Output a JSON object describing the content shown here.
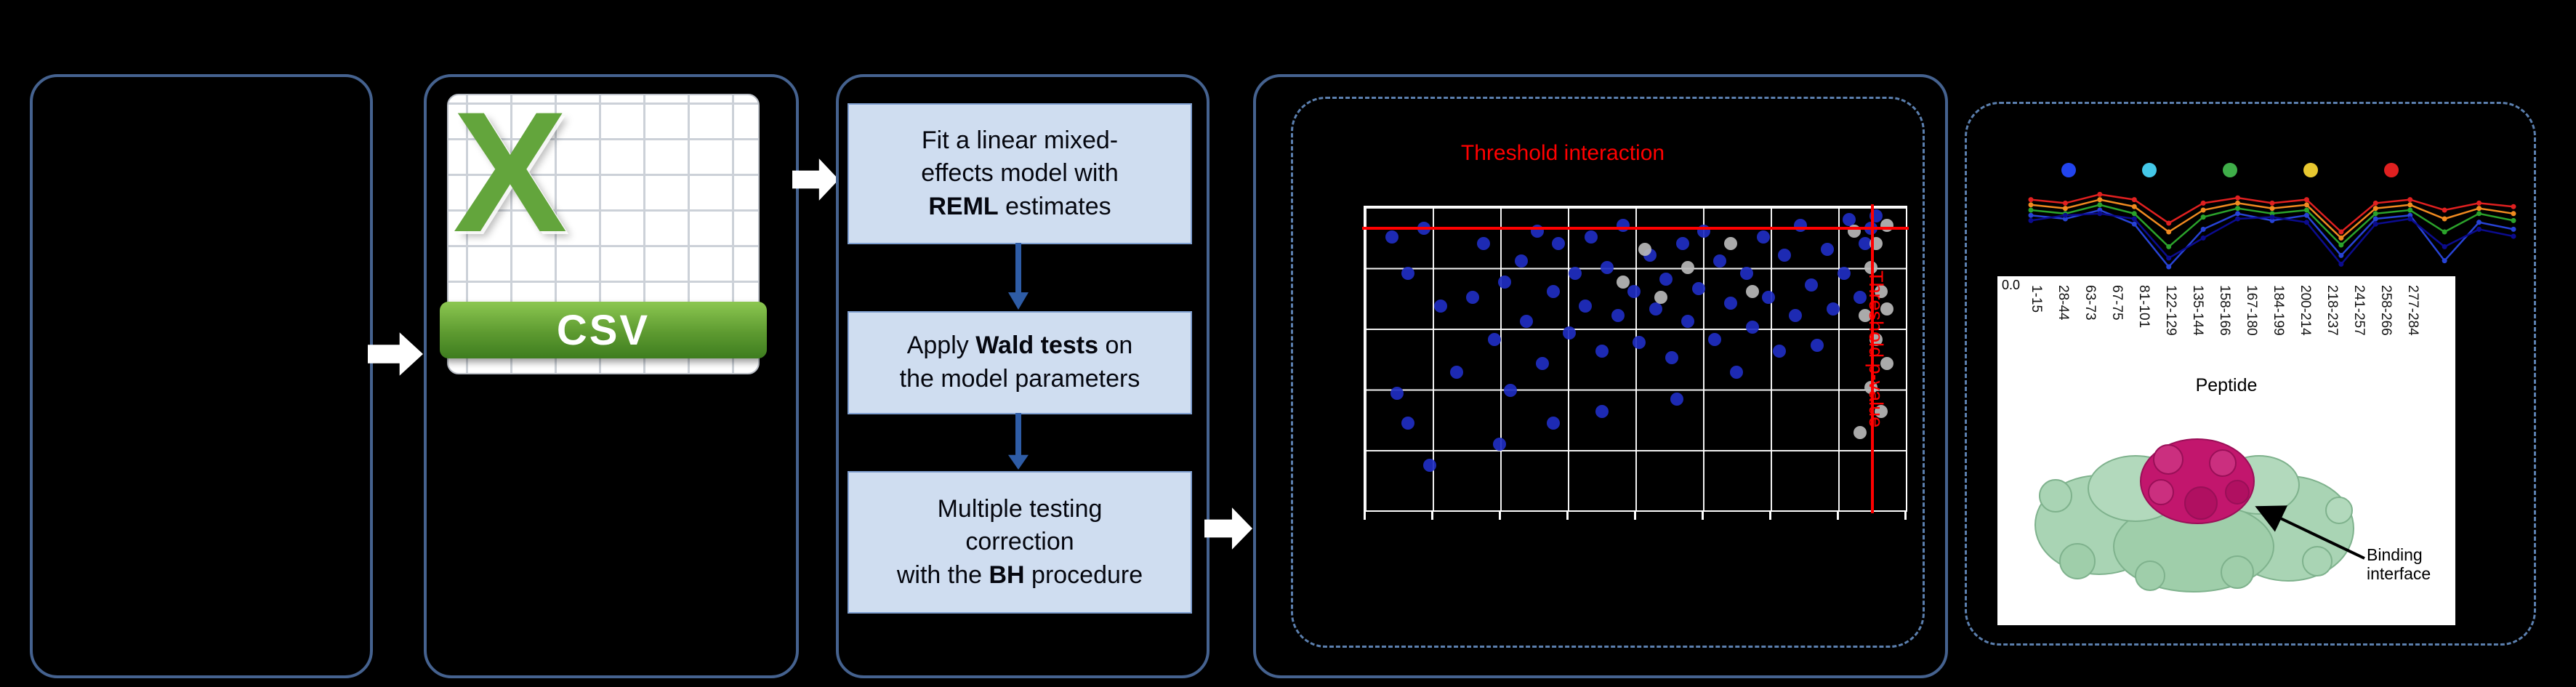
{
  "canvas": {
    "bg": "#000000"
  },
  "colors": {
    "box_border": "#45628f",
    "dashed_border": "#5b7fae",
    "step_fill": "#cfddf0",
    "threshold_red": "#ff0000",
    "significant_blue": "#1f2ec2",
    "nonsignificant_gray": "#b8b8b8"
  },
  "flow": {
    "csv_icon": {
      "letter": "X",
      "label": "CSV"
    },
    "steps": {
      "step1": {
        "l1": "Fit a linear mixed-",
        "l2": "effects model with",
        "l3_bold": "REML",
        "l3_rest": " estimates"
      },
      "step2": {
        "l1_pre": "Apply ",
        "l1_bold": "Wald tests",
        "l1_post": " on",
        "l2": "the model parameters"
      },
      "step3": {
        "l1": "Multiple testing",
        "l2": "correction",
        "l3_pre": "with the ",
        "l3_bold": "BH",
        "l3_post": " procedure"
      }
    }
  },
  "scatter_panel": {
    "title": "Threshold interaction",
    "side_label": "Threshold p-value",
    "chart_data": {
      "type": "scatter",
      "grid": {
        "cols": 8,
        "rows": 5
      },
      "threshold_interaction_y": 0.065,
      "threshold_pvalue_x": 0.941,
      "series": [
        {
          "name": "significant",
          "color": "#1f2ec2",
          "points": [
            [
              0.05,
              0.1
            ],
            [
              0.08,
              0.22
            ],
            [
              0.11,
              0.07
            ],
            [
              0.14,
              0.33
            ],
            [
              0.06,
              0.62
            ],
            [
              0.08,
              0.72
            ],
            [
              0.12,
              0.86
            ],
            [
              0.17,
              0.55
            ],
            [
              0.2,
              0.3
            ],
            [
              0.22,
              0.12
            ],
            [
              0.24,
              0.44
            ],
            [
              0.26,
              0.25
            ],
            [
              0.27,
              0.61
            ],
            [
              0.29,
              0.18
            ],
            [
              0.3,
              0.38
            ],
            [
              0.32,
              0.08
            ],
            [
              0.33,
              0.52
            ],
            [
              0.35,
              0.28
            ],
            [
              0.36,
              0.12
            ],
            [
              0.38,
              0.42
            ],
            [
              0.39,
              0.22
            ],
            [
              0.41,
              0.33
            ],
            [
              0.42,
              0.1
            ],
            [
              0.44,
              0.48
            ],
            [
              0.45,
              0.2
            ],
            [
              0.47,
              0.36
            ],
            [
              0.48,
              0.06
            ],
            [
              0.5,
              0.28
            ],
            [
              0.51,
              0.45
            ],
            [
              0.53,
              0.16
            ],
            [
              0.54,
              0.34
            ],
            [
              0.56,
              0.24
            ],
            [
              0.57,
              0.5
            ],
            [
              0.59,
              0.12
            ],
            [
              0.6,
              0.38
            ],
            [
              0.62,
              0.27
            ],
            [
              0.63,
              0.08
            ],
            [
              0.65,
              0.44
            ],
            [
              0.66,
              0.18
            ],
            [
              0.68,
              0.32
            ],
            [
              0.69,
              0.55
            ],
            [
              0.71,
              0.22
            ],
            [
              0.72,
              0.4
            ],
            [
              0.74,
              0.1
            ],
            [
              0.75,
              0.3
            ],
            [
              0.77,
              0.48
            ],
            [
              0.78,
              0.16
            ],
            [
              0.8,
              0.36
            ],
            [
              0.81,
              0.06
            ],
            [
              0.83,
              0.26
            ],
            [
              0.84,
              0.46
            ],
            [
              0.86,
              0.14
            ],
            [
              0.87,
              0.34
            ],
            [
              0.89,
              0.22
            ],
            [
              0.9,
              0.04
            ],
            [
              0.92,
              0.3
            ],
            [
              0.93,
              0.12
            ],
            [
              0.95,
              0.03
            ],
            [
              0.35,
              0.72
            ],
            [
              0.44,
              0.68
            ],
            [
              0.25,
              0.79
            ],
            [
              0.58,
              0.64
            ],
            [
              0.94,
              0.07
            ]
          ]
        },
        {
          "name": "non-significant",
          "color": "#b8b8b8",
          "points": [
            [
              0.91,
              0.08
            ],
            [
              0.94,
              0.2
            ],
            [
              0.96,
              0.28
            ],
            [
              0.93,
              0.36
            ],
            [
              0.95,
              0.44
            ],
            [
              0.97,
              0.52
            ],
            [
              0.94,
              0.6
            ],
            [
              0.96,
              0.68
            ],
            [
              0.92,
              0.75
            ],
            [
              0.95,
              0.12
            ],
            [
              0.97,
              0.34
            ],
            [
              0.55,
              0.3
            ],
            [
              0.6,
              0.2
            ],
            [
              0.48,
              0.25
            ],
            [
              0.52,
              0.14
            ],
            [
              0.68,
              0.12
            ],
            [
              0.72,
              0.28
            ],
            [
              0.97,
              0.06
            ]
          ]
        }
      ]
    }
  },
  "hdx_panel": {
    "legend_colors": [
      "#2244ee",
      "#44c8e8",
      "#3fae49",
      "#e8c830",
      "#e02020"
    ],
    "line_chart": {
      "type": "line",
      "x_count": 15,
      "series": [
        {
          "name": "series-red",
          "color": "#e02020",
          "values": [
            0.18,
            0.22,
            0.12,
            0.18,
            0.45,
            0.22,
            0.16,
            0.22,
            0.18,
            0.55,
            0.22,
            0.18,
            0.3,
            0.22,
            0.26
          ]
        },
        {
          "name": "series-orange",
          "color": "#f08a20",
          "values": [
            0.24,
            0.28,
            0.18,
            0.26,
            0.55,
            0.3,
            0.22,
            0.28,
            0.24,
            0.62,
            0.28,
            0.24,
            0.4,
            0.28,
            0.34
          ]
        },
        {
          "name": "series-green",
          "color": "#2ba32b",
          "values": [
            0.3,
            0.34,
            0.24,
            0.34,
            0.72,
            0.38,
            0.28,
            0.34,
            0.3,
            0.7,
            0.34,
            0.3,
            0.55,
            0.34,
            0.42
          ]
        },
        {
          "name": "series-blue",
          "color": "#2743d6",
          "values": [
            0.36,
            0.4,
            0.3,
            0.46,
            0.95,
            0.52,
            0.34,
            0.42,
            0.36,
            0.82,
            0.4,
            0.36,
            0.88,
            0.44,
            0.52
          ]
        },
        {
          "name": "series-navy",
          "color": "#0b0b8e",
          "values": [
            0.42,
            0.36,
            0.34,
            0.4,
            0.85,
            0.62,
            0.4,
            0.38,
            0.44,
            0.92,
            0.46,
            0.4,
            0.72,
            0.52,
            0.6
          ]
        }
      ]
    },
    "y_tick": "0.0",
    "peptides": [
      "1-15",
      "28-44",
      "63-73",
      "67-75",
      "81-101",
      "122-129",
      "135-144",
      "158-166",
      "167-180",
      "184-199",
      "200-214",
      "218-237",
      "241-257",
      "258-266",
      "277-284"
    ],
    "xlabel": "Peptide",
    "annotation_l1": "Binding",
    "annotation_l2": "interface"
  }
}
